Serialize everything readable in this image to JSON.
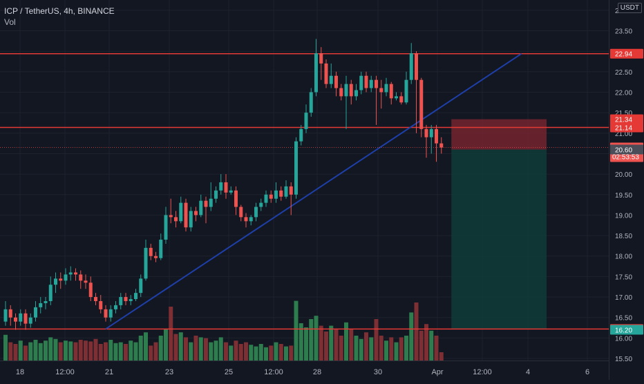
{
  "legend": {
    "title": "ICP / TetherUS, 4h, BINANCE",
    "volume_label": "Vol"
  },
  "currency": "USDT",
  "colors": {
    "background": "#131722",
    "grid": "#1e222d",
    "up": "#26a69a",
    "down": "#ef5350",
    "vol_up": "#2e7d4f",
    "vol_down": "#7d2f33",
    "level_line": "#e53935",
    "trend_line": "#1e3fa8",
    "stop_zone": "#7b2531",
    "target_zone": "#0f3b38"
  },
  "chart_data": {
    "type": "candlestick",
    "symbol": "ICP / TetherUS",
    "interval": "4h",
    "exchange": "BINANCE",
    "y_range": [
      15.45,
      24.25
    ],
    "y_ticks": [
      "24.00",
      "23.50",
      "23.00",
      "22.50",
      "22.00",
      "21.50",
      "21.00",
      "20.50",
      "20.00",
      "19.50",
      "19.00",
      "18.50",
      "18.00",
      "17.50",
      "17.00",
      "16.50",
      "16.00",
      "15.50"
    ],
    "x_ticks": [
      "18",
      "12:00",
      "21",
      "23",
      "25",
      "12:00",
      "28",
      "30",
      "Apr",
      "12:00",
      "4",
      "6"
    ],
    "candles": [
      [
        16.4,
        16.7,
        16.9,
        16.3
      ],
      [
        16.7,
        16.5,
        16.8,
        16.3
      ],
      [
        16.5,
        16.4,
        16.6,
        16.2
      ],
      [
        16.4,
        16.6,
        16.7,
        16.3
      ],
      [
        16.6,
        16.35,
        16.7,
        16.2
      ],
      [
        16.35,
        16.5,
        16.6,
        16.25
      ],
      [
        16.5,
        16.75,
        16.9,
        16.4
      ],
      [
        16.75,
        16.85,
        17.0,
        16.6
      ],
      [
        16.85,
        16.9,
        17.0,
        16.7
      ],
      [
        16.9,
        17.3,
        17.5,
        16.8
      ],
      [
        17.3,
        17.45,
        17.6,
        17.1
      ],
      [
        17.45,
        17.4,
        17.6,
        17.2
      ],
      [
        17.4,
        17.55,
        17.7,
        17.3
      ],
      [
        17.55,
        17.6,
        17.75,
        17.4
      ],
      [
        17.6,
        17.55,
        17.7,
        17.4
      ],
      [
        17.55,
        17.4,
        17.65,
        17.2
      ],
      [
        17.4,
        17.35,
        17.55,
        17.2
      ],
      [
        17.35,
        17.0,
        17.5,
        16.9
      ],
      [
        17.0,
        16.9,
        17.1,
        16.8
      ],
      [
        16.9,
        16.7,
        17.05,
        16.6
      ],
      [
        16.7,
        16.5,
        16.8,
        16.4
      ],
      [
        16.5,
        16.7,
        16.8,
        16.4
      ],
      [
        16.7,
        16.8,
        16.9,
        16.6
      ],
      [
        16.8,
        17.0,
        17.1,
        16.7
      ],
      [
        17.0,
        16.9,
        17.1,
        16.8
      ],
      [
        16.9,
        16.95,
        17.05,
        16.8
      ],
      [
        16.95,
        17.1,
        17.2,
        16.9
      ],
      [
        17.1,
        17.45,
        17.55,
        17.0
      ],
      [
        17.45,
        18.2,
        18.4,
        17.4
      ],
      [
        18.2,
        18.0,
        18.3,
        17.9
      ],
      [
        18.0,
        17.95,
        18.1,
        17.85
      ],
      [
        17.95,
        18.4,
        18.55,
        17.9
      ],
      [
        18.4,
        19.0,
        19.2,
        18.3
      ],
      [
        19.0,
        18.95,
        19.4,
        18.8
      ],
      [
        18.95,
        18.85,
        19.1,
        18.7
      ],
      [
        18.85,
        19.3,
        19.45,
        18.8
      ],
      [
        19.3,
        18.7,
        19.4,
        18.6
      ],
      [
        18.7,
        19.1,
        19.2,
        18.6
      ],
      [
        19.1,
        19.0,
        19.2,
        18.85
      ],
      [
        19.0,
        19.35,
        19.5,
        18.95
      ],
      [
        19.35,
        19.2,
        19.45,
        18.8
      ],
      [
        19.2,
        19.4,
        19.8,
        19.1
      ],
      [
        19.4,
        19.6,
        19.7,
        19.3
      ],
      [
        19.6,
        19.8,
        20.0,
        19.5
      ],
      [
        19.8,
        19.55,
        20.0,
        19.4
      ],
      [
        19.55,
        19.6,
        19.7,
        19.5
      ],
      [
        19.6,
        19.2,
        19.7,
        19.0
      ],
      [
        19.2,
        18.95,
        19.25,
        18.85
      ],
      [
        18.95,
        18.85,
        19.05,
        18.7
      ],
      [
        18.85,
        18.95,
        19.0,
        18.75
      ],
      [
        18.95,
        19.2,
        19.3,
        18.85
      ],
      [
        19.2,
        19.3,
        19.4,
        19.1
      ],
      [
        19.3,
        19.5,
        19.6,
        19.2
      ],
      [
        19.5,
        19.4,
        19.6,
        19.3
      ],
      [
        19.4,
        19.6,
        19.8,
        19.3
      ],
      [
        19.6,
        19.45,
        19.7,
        19.35
      ],
      [
        19.45,
        19.7,
        19.85,
        19.4
      ],
      [
        19.7,
        19.5,
        19.8,
        19.0
      ],
      [
        19.5,
        20.8,
        20.9,
        19.4
      ],
      [
        20.8,
        21.1,
        21.2,
        20.7
      ],
      [
        21.1,
        21.5,
        21.7,
        21.0
      ],
      [
        21.5,
        22.0,
        22.1,
        21.4
      ],
      [
        22.0,
        22.95,
        23.3,
        21.9
      ],
      [
        22.95,
        22.7,
        23.1,
        22.3
      ],
      [
        22.7,
        22.2,
        22.8,
        22.1
      ],
      [
        22.2,
        22.4,
        22.7,
        22.1
      ],
      [
        22.4,
        22.1,
        22.5,
        21.9
      ],
      [
        22.1,
        21.9,
        22.2,
        21.8
      ],
      [
        21.9,
        22.2,
        22.4,
        21.1
      ],
      [
        22.2,
        21.9,
        22.3,
        21.7
      ],
      [
        21.9,
        22.05,
        22.2,
        21.8
      ],
      [
        22.05,
        22.4,
        22.5,
        21.95
      ],
      [
        22.4,
        22.1,
        22.5,
        22.0
      ],
      [
        22.1,
        22.3,
        22.4,
        22.0
      ],
      [
        22.3,
        22.1,
        22.4,
        21.2
      ],
      [
        22.1,
        22.0,
        22.3,
        21.6
      ],
      [
        22.0,
        22.2,
        22.35,
        21.9
      ],
      [
        22.2,
        21.85,
        22.25,
        21.7
      ],
      [
        21.85,
        21.9,
        22.0,
        21.8
      ],
      [
        21.9,
        21.75,
        22.0,
        21.7
      ],
      [
        21.75,
        22.3,
        22.5,
        21.7
      ],
      [
        22.3,
        22.95,
        23.2,
        22.2
      ],
      [
        22.95,
        22.3,
        23.0,
        21.0
      ],
      [
        22.3,
        21.1,
        22.35,
        20.9
      ],
      [
        21.1,
        20.9,
        21.2,
        20.4
      ],
      [
        20.9,
        21.1,
        21.2,
        20.5
      ],
      [
        21.1,
        20.75,
        21.2,
        20.3
      ],
      [
        20.75,
        20.65,
        20.9,
        20.5
      ]
    ],
    "volumes": [
      0.31,
      0.22,
      0.2,
      0.24,
      0.18,
      0.22,
      0.25,
      0.21,
      0.24,
      0.28,
      0.26,
      0.22,
      0.24,
      0.23,
      0.22,
      0.25,
      0.24,
      0.23,
      0.26,
      0.2,
      0.22,
      0.25,
      0.21,
      0.22,
      0.2,
      0.24,
      0.22,
      0.3,
      0.34,
      0.18,
      0.22,
      0.3,
      0.38,
      0.65,
      0.32,
      0.34,
      0.28,
      0.22,
      0.3,
      0.28,
      0.27,
      0.22,
      0.24,
      0.28,
      0.22,
      0.18,
      0.24,
      0.2,
      0.22,
      0.19,
      0.17,
      0.2,
      0.16,
      0.18,
      0.22,
      0.2,
      0.17,
      0.18,
      0.72,
      0.45,
      0.4,
      0.5,
      0.54,
      0.42,
      0.35,
      0.42,
      0.38,
      0.3,
      0.46,
      0.38,
      0.3,
      0.26,
      0.34,
      0.28,
      0.5,
      0.3,
      0.24,
      0.28,
      0.22,
      0.28,
      0.3,
      0.58,
      0.7,
      0.36,
      0.44,
      0.36,
      0.3,
      0.1
    ],
    "horizontal_levels": [
      22.94,
      21.14,
      16.22
    ],
    "trendline": {
      "from": {
        "index": 20,
        "price": 16.22
      },
      "to": {
        "index": 103,
        "price": 22.94
      }
    },
    "position_tool": {
      "entry": 20.6,
      "stop": 21.34,
      "target": 16.22,
      "start_index": 89,
      "end_index": 108
    },
    "last_price": 20.65,
    "current_price_line": 20.65,
    "price_labels": [
      {
        "value": 22.94,
        "text": "22.94",
        "type": "level"
      },
      {
        "value": 21.34,
        "text": "21.34",
        "type": "level"
      },
      {
        "value": 21.14,
        "text": "21.14",
        "type": "level"
      },
      {
        "value": 20.65,
        "text": "20.65",
        "type": "last",
        "countdown": "02:53:53"
      },
      {
        "value": 20.6,
        "text": "20.60",
        "type": "entry"
      },
      {
        "value": 16.22,
        "text": "16.22",
        "type": "level"
      },
      {
        "value": 16.2,
        "text": "16.20",
        "type": "volume"
      }
    ]
  }
}
